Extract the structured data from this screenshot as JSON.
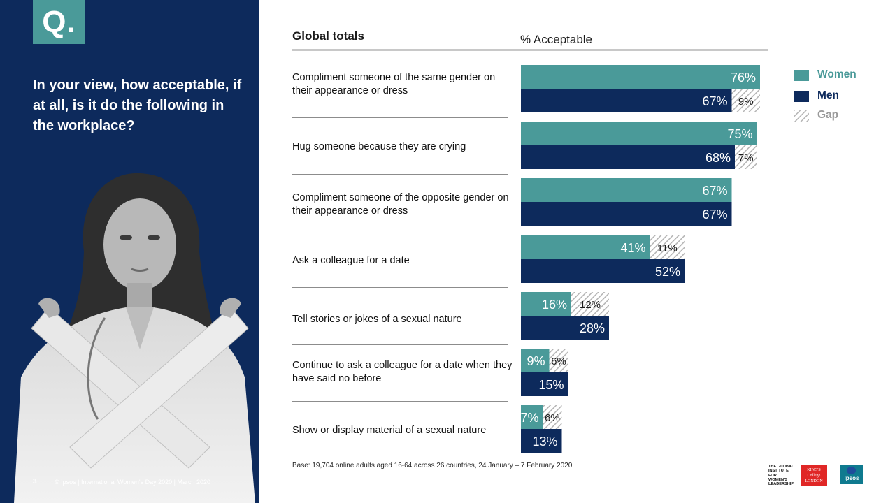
{
  "left_panel": {
    "badge": "Q.",
    "question": "In your view, how acceptable, if at all, is it do the following in the workplace?",
    "page_number": "3",
    "footer": "© Ipsos | International Women's Day 2020 | March 2020"
  },
  "section_title": "Global totals",
  "colors": {
    "women": "#4a9a99",
    "men": "#0d2a5c",
    "gap": "#cfcfcf"
  },
  "legend": {
    "women": "Women",
    "men": "Men",
    "gap": "Gap"
  },
  "base_note": "Base: 19,704 online adults aged 16-64 across 26 countries,  24 January – 7 February 2020",
  "logos": {
    "global_institute": "THE GLOBAL INSTITUTE FOR WOMEN'S LEADERSHIP",
    "kings": "KING'S College LONDON",
    "ipsos": "Ipsos"
  },
  "chart_data": {
    "type": "bar",
    "orientation": "horizontal",
    "title": "% Acceptable",
    "categories": [
      "Compliment someone of the same gender on their appearance or dress",
      "Hug someone because they are crying",
      "Compliment someone of the opposite gender on their appearance or dress",
      "Ask a colleague for a date",
      "Tell stories or jokes of a sexual nature",
      "Continue to ask a colleague for a date when they have said no before",
      "Show or display material of a sexual nature"
    ],
    "series": [
      {
        "name": "Women",
        "values": [
          76,
          75,
          67,
          41,
          16,
          9,
          7
        ]
      },
      {
        "name": "Men",
        "values": [
          67,
          68,
          67,
          52,
          28,
          15,
          13
        ]
      }
    ],
    "gap": [
      9,
      7,
      null,
      11,
      12,
      6,
      6
    ],
    "labels": {
      "women": [
        "76%",
        "75%",
        "67%",
        "41%",
        "16%",
        "9%",
        "7%"
      ],
      "men": [
        "67%",
        "68%",
        "67%",
        "52%",
        "28%",
        "15%",
        "13%"
      ],
      "gap": [
        "9%",
        "7%",
        "",
        "11%",
        "12%",
        "6%",
        "6%"
      ]
    },
    "xlim": [
      0,
      100
    ]
  }
}
